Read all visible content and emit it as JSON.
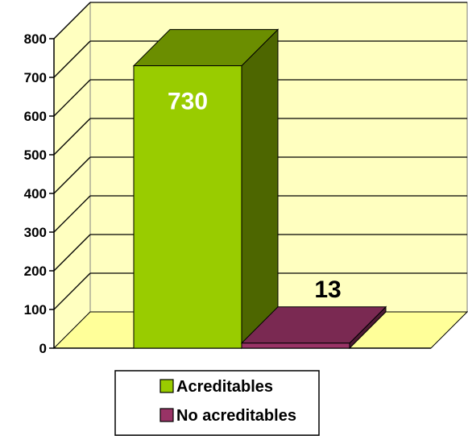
{
  "chart_data": {
    "type": "bar",
    "categories": [
      "Acreditables",
      "No acreditables"
    ],
    "values": [
      730,
      13
    ],
    "data_labels": [
      "730",
      "13"
    ],
    "ylim": [
      0,
      800
    ],
    "yticks": [
      0,
      100,
      200,
      300,
      400,
      500,
      600,
      700,
      800
    ],
    "ytick_labels": [
      "0",
      "100",
      "200",
      "300",
      "400",
      "500",
      "600",
      "700",
      "800"
    ],
    "grid": true,
    "three_d": true,
    "legend_position": "bottom",
    "title": "",
    "xlabel": "",
    "ylabel": "",
    "colors": {
      "wall": "#FFFFC0",
      "floor": "#FFFF99",
      "Acreditables": {
        "front": "#99CC00",
        "side": "#4D6600",
        "top": "#6B8E00"
      },
      "No acreditables": {
        "front": "#993366",
        "side": "#4D1A33",
        "top": "#7A2952"
      },
      "value_label_inside": "#ffffff",
      "value_label_outside": "#000000"
    }
  }
}
